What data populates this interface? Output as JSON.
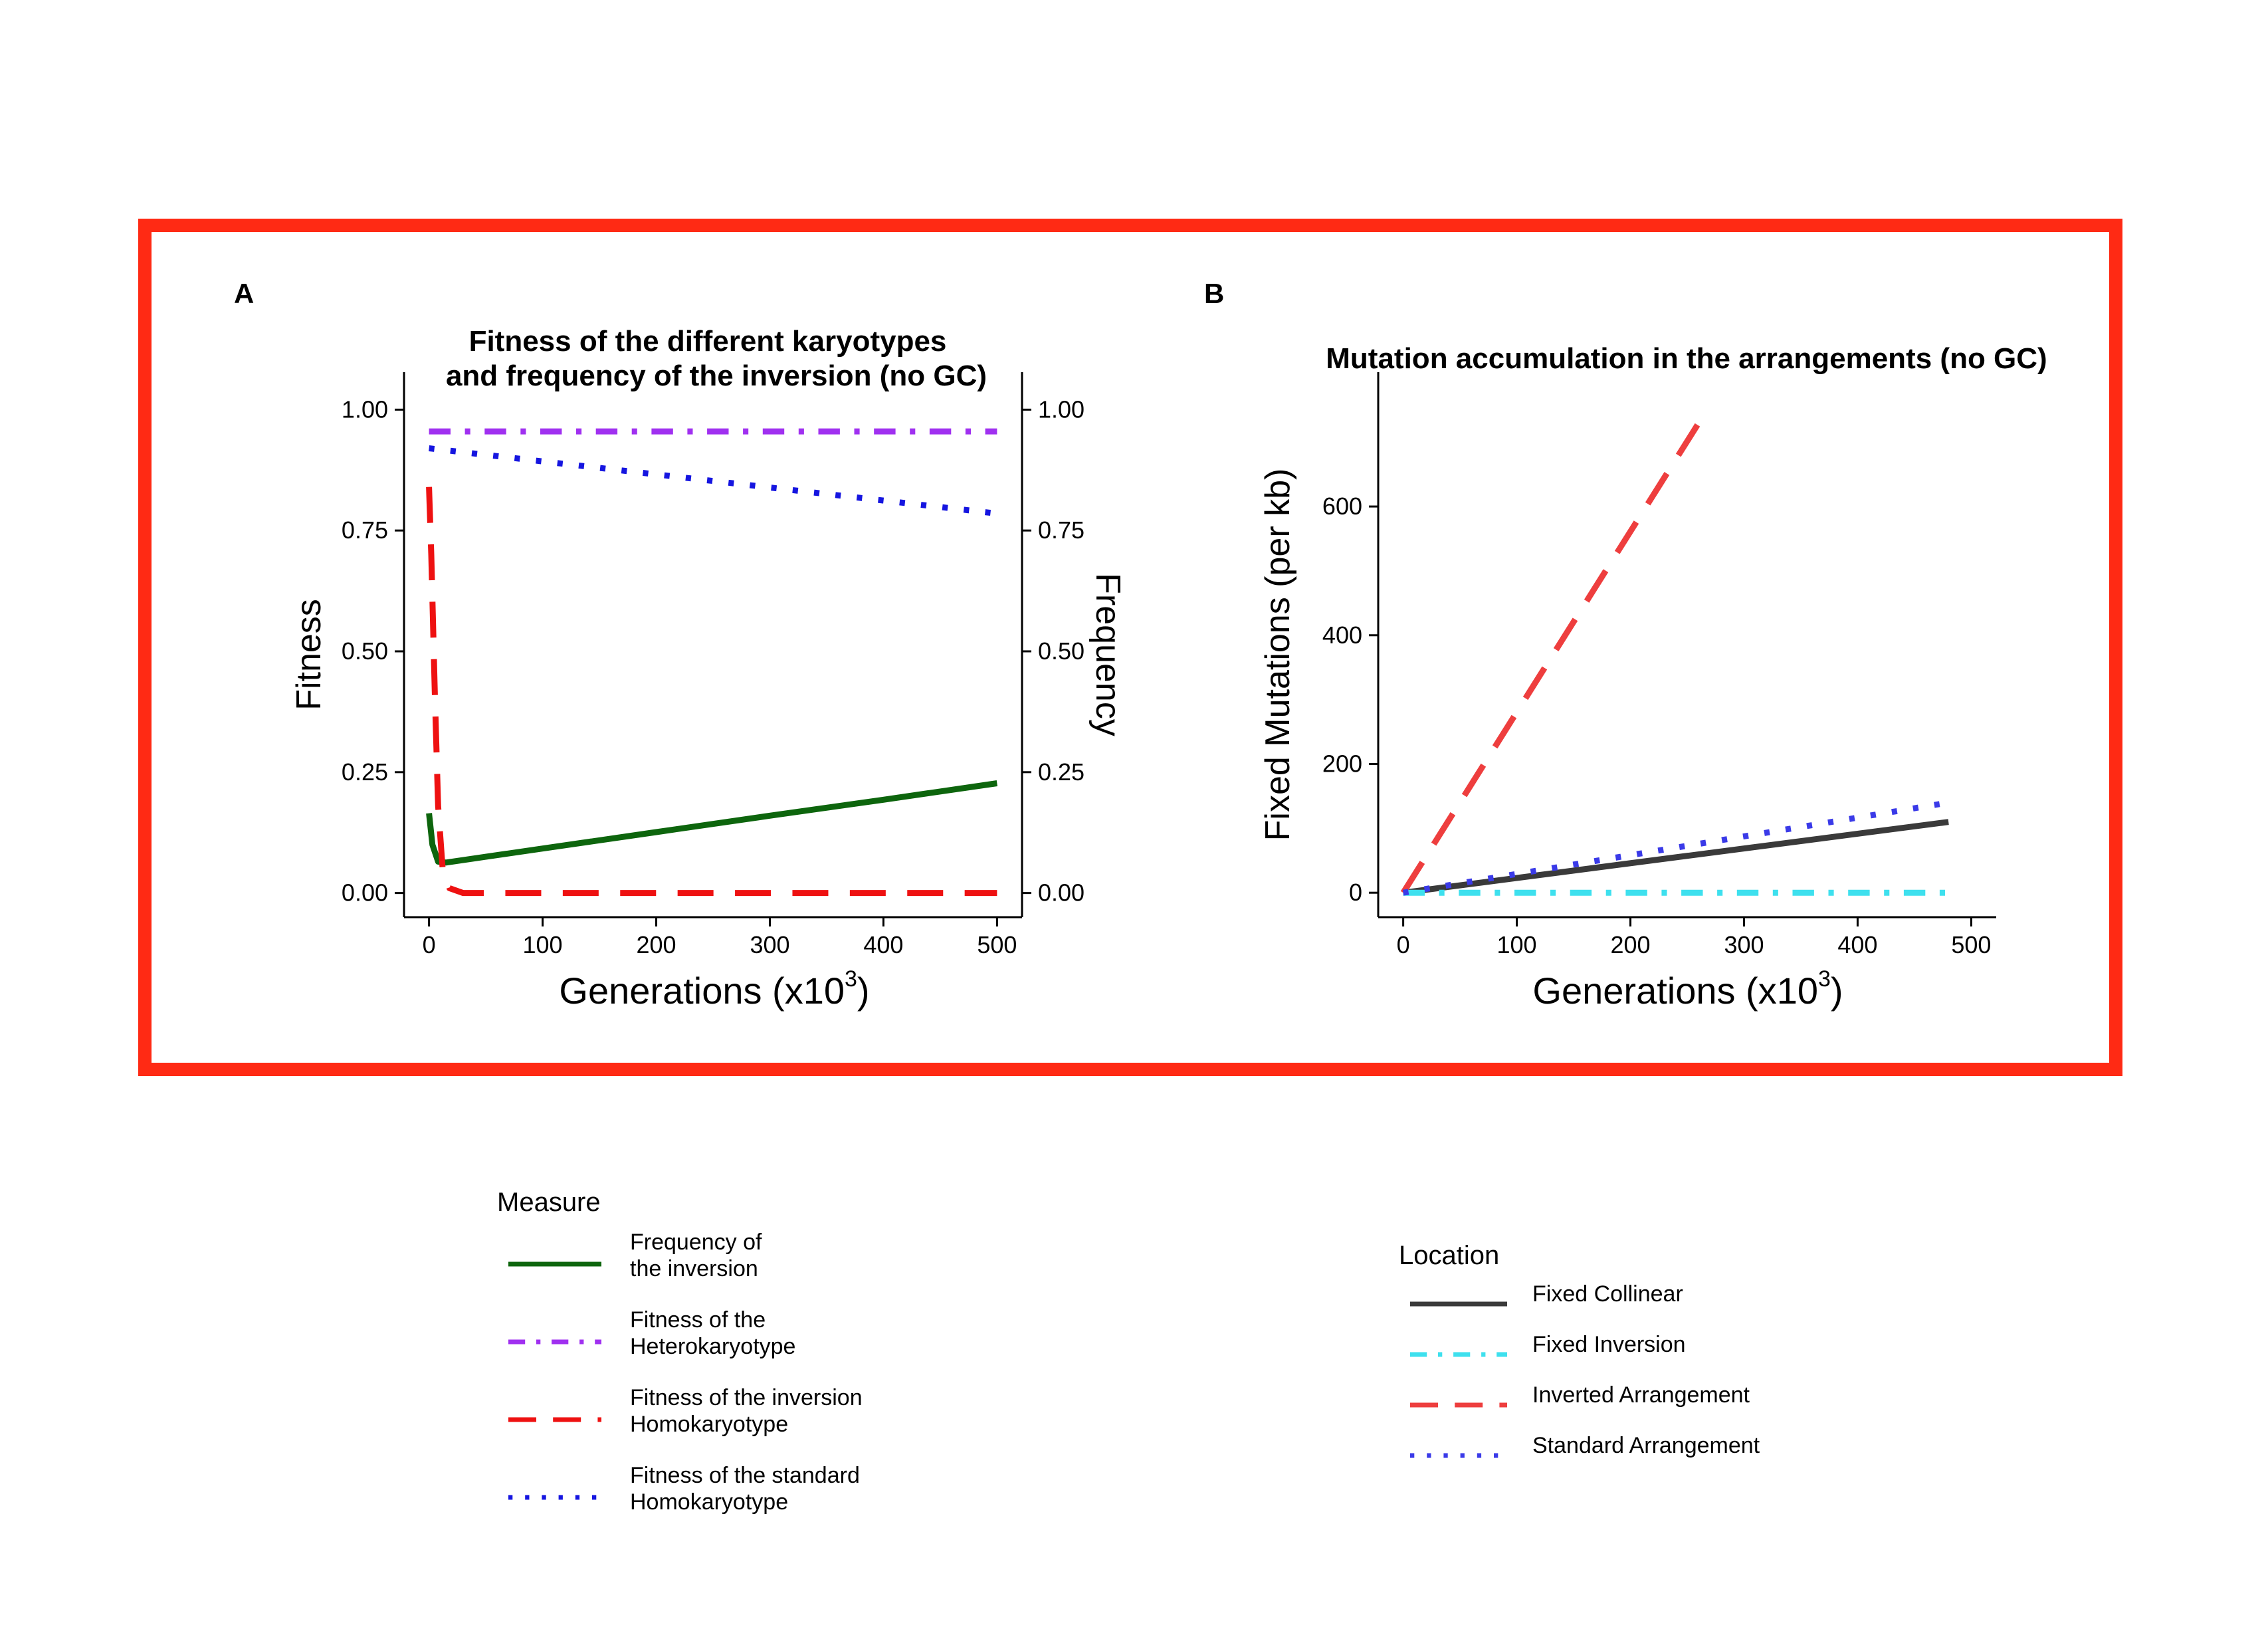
{
  "frame": {
    "border_color": "#ff2a14"
  },
  "panel_a": {
    "letter": "A",
    "title_lines": [
      "Fitness of the different karyotypes",
      "and frequency of the inversion (no GC)"
    ],
    "x_title": "Generations (x10",
    "x_title_exp": "3",
    "x_title_end": ")",
    "y_title": "Fitness",
    "y2_title": "Frequency"
  },
  "panel_b": {
    "letter": "B",
    "title": "Mutation accumulation in the arrangements (no GC)",
    "x_title": "Generations (x10",
    "x_title_exp": "3",
    "x_title_end": ")",
    "y_title": "Fixed Mutations (per kb)"
  },
  "legend_measure": {
    "title": "Measure",
    "items": [
      {
        "lines": [
          "Frequency of",
          " the inversion"
        ],
        "color": "#0d650d",
        "dash": "solid"
      },
      {
        "lines": [
          "Fitness of the",
          " Heterokaryotype"
        ],
        "color": "#a030f0",
        "dash": "dashdot"
      },
      {
        "lines": [
          "Fitness of the inversion",
          " Homokaryotype"
        ],
        "color": "#ee1111",
        "dash": "longdash"
      },
      {
        "lines": [
          "Fitness of the standard",
          " Homokaryotype"
        ],
        "color": "#1515e0",
        "dash": "dotted"
      }
    ]
  },
  "legend_location": {
    "title": "Location",
    "items": [
      {
        "label": "Fixed Collinear",
        "color": "#3a3a3a",
        "dash": "solid"
      },
      {
        "label": "Fixed Inversion",
        "color": "#3ee0ee",
        "dash": "dashdot"
      },
      {
        "label": "Inverted Arrangement",
        "color": "#ee3e3e",
        "dash": "longdash"
      },
      {
        "label": "Standard Arrangement",
        "color": "#3a3ae8",
        "dash": "dotted"
      }
    ]
  },
  "chart_data": [
    {
      "type": "line",
      "title": "Fitness of the different karyotypes and frequency of the inversion (no GC)",
      "xlabel": "Generations (x10^3)",
      "ylabel": "Fitness",
      "y2label": "Frequency",
      "xlim": [
        -22,
        522
      ],
      "ylim": [
        -0.05,
        1.05
      ],
      "x_ticks": [
        0,
        100,
        200,
        300,
        400,
        500
      ],
      "y_ticks": [
        0.0,
        0.25,
        0.5,
        0.75,
        1.0
      ],
      "y_tick_labels": [
        "0.00",
        "0.25",
        "0.50",
        "0.75",
        "1.00"
      ],
      "grid": false,
      "legend": "bottom-left",
      "series": [
        {
          "name": "Frequency of the inversion",
          "color": "#0d650d",
          "dash": "solid",
          "x": [
            0,
            3,
            8,
            15,
            50,
            100,
            200,
            300,
            400,
            500
          ],
          "y": [
            0.165,
            0.1,
            0.065,
            0.063,
            0.075,
            0.092,
            0.126,
            0.16,
            0.193,
            0.227
          ]
        },
        {
          "name": "Fitness of the Heterokaryotype",
          "color": "#a030f0",
          "dash": "dashdot",
          "x": [
            0,
            100,
            200,
            300,
            400,
            500
          ],
          "y": [
            0.955,
            0.955,
            0.955,
            0.955,
            0.955,
            0.955
          ]
        },
        {
          "name": "Fitness of the inversion Homokaryotype",
          "color": "#ee1111",
          "dash": "longdash",
          "x": [
            0,
            2,
            5,
            8,
            12,
            18,
            30,
            100,
            200,
            300,
            400,
            500
          ],
          "y": [
            0.84,
            0.7,
            0.42,
            0.18,
            0.05,
            0.01,
            0.0,
            0.0,
            0.0,
            0.0,
            0.0,
            0.0
          ]
        },
        {
          "name": "Fitness of the standard Homokaryotype",
          "color": "#1515e0",
          "dash": "dotted",
          "x": [
            0,
            100,
            200,
            300,
            400,
            500
          ],
          "y": [
            0.92,
            0.893,
            0.866,
            0.839,
            0.812,
            0.785
          ]
        }
      ]
    },
    {
      "type": "line",
      "title": "Mutation accumulation in the arrangements (no GC)",
      "xlabel": "Generations (x10^3)",
      "ylabel": "Fixed Mutations (per kb)",
      "xlim": [
        -22,
        522
      ],
      "ylim": [
        -38,
        788
      ],
      "x_ticks": [
        0,
        100,
        200,
        300,
        400,
        500
      ],
      "y_ticks": [
        0,
        200,
        400,
        600
      ],
      "grid": false,
      "legend": "bottom-right",
      "series": [
        {
          "name": "Fixed Collinear",
          "color": "#3a3a3a",
          "dash": "solid",
          "x": [
            0,
            480
          ],
          "y": [
            0,
            110
          ]
        },
        {
          "name": "Fixed Inversion",
          "color": "#3ee0ee",
          "dash": "dashdot",
          "x": [
            0,
            480
          ],
          "y": [
            0,
            0
          ]
        },
        {
          "name": "Inverted Arrangement",
          "color": "#ee3e3e",
          "dash": "longdash",
          "x": [
            0,
            262
          ],
          "y": [
            0,
            735
          ]
        },
        {
          "name": "Standard Arrangement",
          "color": "#3a3ae8",
          "dash": "dotted",
          "x": [
            0,
            480
          ],
          "y": [
            0,
            140
          ]
        }
      ]
    }
  ]
}
